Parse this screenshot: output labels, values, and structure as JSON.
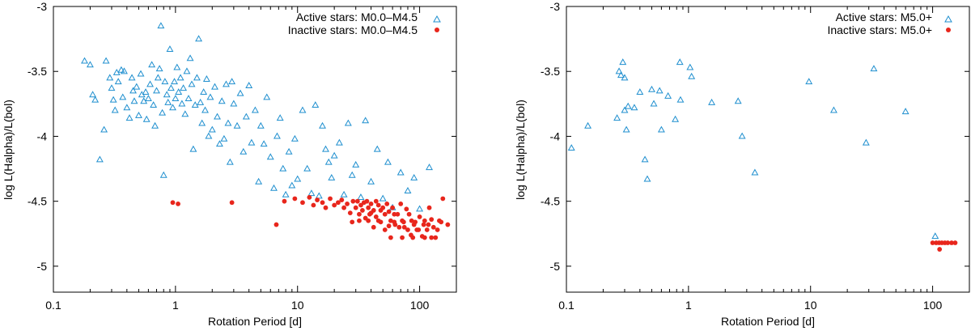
{
  "chart_data": [
    {
      "type": "scatter",
      "xscale": "log",
      "xlabel": "Rotation Period  [d]",
      "ylabel": "log L(Halpha)/L(bol)",
      "xlim": [
        0.1,
        200
      ],
      "ylim": [
        -5.2,
        -3
      ],
      "xticks": [
        0.1,
        1,
        10,
        100
      ],
      "xtick_labels": [
        "0.1",
        "1",
        "10",
        "100"
      ],
      "yticks": [
        -3,
        -3.5,
        -4,
        -4.5,
        -5
      ],
      "ytick_labels": [
        "-3",
        "-3.5",
        "-4",
        "-4.5",
        "-5"
      ],
      "legend_position": "top-right",
      "series": [
        {
          "name": "Active stars: M0.0–M4.5",
          "marker": "triangle",
          "color": "#1f8fcf",
          "points": [
            [
              0.18,
              -3.42
            ],
            [
              0.2,
              -3.45
            ],
            [
              0.21,
              -3.68
            ],
            [
              0.22,
              -3.72
            ],
            [
              0.24,
              -4.18
            ],
            [
              0.26,
              -3.95
            ],
            [
              0.27,
              -3.42
            ],
            [
              0.29,
              -3.55
            ],
            [
              0.3,
              -3.63
            ],
            [
              0.31,
              -3.72
            ],
            [
              0.32,
              -3.8
            ],
            [
              0.33,
              -3.51
            ],
            [
              0.34,
              -3.58
            ],
            [
              0.36,
              -3.49
            ],
            [
              0.37,
              -3.7
            ],
            [
              0.38,
              -3.5
            ],
            [
              0.4,
              -3.78
            ],
            [
              0.42,
              -3.86
            ],
            [
              0.44,
              -3.55
            ],
            [
              0.45,
              -3.65
            ],
            [
              0.46,
              -3.73
            ],
            [
              0.48,
              -3.62
            ],
            [
              0.5,
              -3.84
            ],
            [
              0.52,
              -3.52
            ],
            [
              0.53,
              -3.68
            ],
            [
              0.55,
              -3.73
            ],
            [
              0.57,
              -3.66
            ],
            [
              0.58,
              -3.87
            ],
            [
              0.6,
              -3.71
            ],
            [
              0.62,
              -3.6
            ],
            [
              0.64,
              -3.45
            ],
            [
              0.66,
              -3.76
            ],
            [
              0.68,
              -3.92
            ],
            [
              0.7,
              -3.65
            ],
            [
              0.72,
              -3.55
            ],
            [
              0.74,
              -3.48
            ],
            [
              0.76,
              -3.15
            ],
            [
              0.78,
              -3.82
            ],
            [
              0.8,
              -4.3
            ],
            [
              0.82,
              -3.58
            ],
            [
              0.85,
              -3.68
            ],
            [
              0.87,
              -3.74
            ],
            [
              0.9,
              -3.33
            ],
            [
              0.92,
              -3.63
            ],
            [
              0.95,
              -3.78
            ],
            [
              0.98,
              -3.58
            ],
            [
              1.0,
              -3.71
            ],
            [
              1.03,
              -3.47
            ],
            [
              1.06,
              -3.66
            ],
            [
              1.1,
              -3.55
            ],
            [
              1.13,
              -3.75
            ],
            [
              1.16,
              -3.63
            ],
            [
              1.2,
              -3.83
            ],
            [
              1.24,
              -3.5
            ],
            [
              1.28,
              -3.71
            ],
            [
              1.32,
              -3.4
            ],
            [
              1.36,
              -3.6
            ],
            [
              1.4,
              -4.1
            ],
            [
              1.45,
              -3.76
            ],
            [
              1.5,
              -3.55
            ],
            [
              1.55,
              -3.25
            ],
            [
              1.6,
              -3.74
            ],
            [
              1.65,
              -3.9
            ],
            [
              1.7,
              -3.66
            ],
            [
              1.75,
              -3.8
            ],
            [
              1.8,
              -3.56
            ],
            [
              1.87,
              -4.0
            ],
            [
              1.93,
              -3.7
            ],
            [
              2.0,
              -3.95
            ],
            [
              2.1,
              -3.62
            ],
            [
              2.2,
              -3.85
            ],
            [
              2.3,
              -4.06
            ],
            [
              2.4,
              -3.73
            ],
            [
              2.5,
              -4.02
            ],
            [
              2.6,
              -3.6
            ],
            [
              2.7,
              -3.9
            ],
            [
              2.8,
              -4.2
            ],
            [
              2.9,
              -3.58
            ],
            [
              3.0,
              -3.75
            ],
            [
              3.2,
              -3.92
            ],
            [
              3.4,
              -3.67
            ],
            [
              3.6,
              -4.12
            ],
            [
              3.8,
              -3.85
            ],
            [
              4.0,
              -3.61
            ],
            [
              4.2,
              -4.05
            ],
            [
              4.5,
              -3.8
            ],
            [
              4.8,
              -4.35
            ],
            [
              5.0,
              -3.92
            ],
            [
              5.3,
              -4.06
            ],
            [
              5.6,
              -3.7
            ],
            [
              6.0,
              -4.16
            ],
            [
              6.4,
              -4.4
            ],
            [
              6.8,
              -4.0
            ],
            [
              7.2,
              -3.86
            ],
            [
              7.6,
              -4.25
            ],
            [
              8.0,
              -4.45
            ],
            [
              8.5,
              -4.12
            ],
            [
              9.0,
              -4.38
            ],
            [
              9.5,
              -4.02
            ],
            [
              10,
              -4.33
            ],
            [
              11,
              -3.8
            ],
            [
              12,
              -4.25
            ],
            [
              13,
              -4.44
            ],
            [
              14,
              -3.76
            ],
            [
              15,
              -4.46
            ],
            [
              16,
              -3.92
            ],
            [
              17,
              -4.1
            ],
            [
              18,
              -4.2
            ],
            [
              19,
              -4.32
            ],
            [
              20,
              -4.15
            ],
            [
              22,
              -4.05
            ],
            [
              24,
              -4.45
            ],
            [
              26,
              -3.9
            ],
            [
              28,
              -4.3
            ],
            [
              30,
              -4.22
            ],
            [
              33,
              -4.47
            ],
            [
              36,
              -3.88
            ],
            [
              40,
              -4.35
            ],
            [
              45,
              -4.1
            ],
            [
              50,
              -4.48
            ],
            [
              55,
              -4.2
            ],
            [
              60,
              -4.55
            ],
            [
              70,
              -4.28
            ],
            [
              80,
              -4.42
            ],
            [
              90,
              -4.32
            ],
            [
              100,
              -4.56
            ],
            [
              120,
              -4.24
            ]
          ]
        },
        {
          "name": "Inactive stars: M0.0–M4.5",
          "marker": "dot",
          "color": "#e8261c",
          "points": [
            [
              0.95,
              -4.51
            ],
            [
              1.05,
              -4.52
            ],
            [
              2.9,
              -4.51
            ],
            [
              6.7,
              -4.68
            ],
            [
              7.8,
              -4.5
            ],
            [
              9.5,
              -4.48
            ],
            [
              11,
              -4.51
            ],
            [
              12.5,
              -4.47
            ],
            [
              13.5,
              -4.53
            ],
            [
              14.5,
              -4.49
            ],
            [
              16,
              -4.51
            ],
            [
              17,
              -4.55
            ],
            [
              18.5,
              -4.48
            ],
            [
              20,
              -4.53
            ],
            [
              21.5,
              -4.51
            ],
            [
              23,
              -4.49
            ],
            [
              24,
              -4.55
            ],
            [
              25.5,
              -4.52
            ],
            [
              27,
              -4.59
            ],
            [
              28.5,
              -4.5
            ],
            [
              30,
              -4.55
            ],
            [
              31,
              -4.5
            ],
            [
              32,
              -4.6
            ],
            [
              33,
              -4.53
            ],
            [
              34,
              -4.57
            ],
            [
              35,
              -4.51
            ],
            [
              36,
              -4.63
            ],
            [
              37,
              -4.5
            ],
            [
              38,
              -4.55
            ],
            [
              39,
              -4.6
            ],
            [
              40,
              -4.52
            ],
            [
              42,
              -4.57
            ],
            [
              44,
              -4.5
            ],
            [
              46,
              -4.53
            ],
            [
              48,
              -4.66
            ],
            [
              50,
              -4.55
            ],
            [
              52,
              -4.6
            ],
            [
              54,
              -4.52
            ],
            [
              56,
              -4.58
            ],
            [
              58,
              -4.65
            ],
            [
              60,
              -4.55
            ],
            [
              63,
              -4.68
            ],
            [
              66,
              -4.6
            ],
            [
              70,
              -4.52
            ],
            [
              72,
              -4.65
            ],
            [
              75,
              -4.7
            ],
            [
              78,
              -4.56
            ],
            [
              82,
              -4.6
            ],
            [
              86,
              -4.65
            ],
            [
              90,
              -4.68
            ],
            [
              95,
              -4.72
            ],
            [
              100,
              -4.62
            ],
            [
              105,
              -4.77
            ],
            [
              110,
              -4.65
            ],
            [
              115,
              -4.72
            ],
            [
              120,
              -4.55
            ],
            [
              130,
              -4.7
            ],
            [
              135,
              -4.78
            ],
            [
              145,
              -4.65
            ],
            [
              155,
              -4.48
            ],
            [
              170,
              -4.68
            ],
            [
              28,
              -4.66
            ],
            [
              32,
              -4.65
            ],
            [
              38,
              -4.65
            ],
            [
              42,
              -4.7
            ],
            [
              46,
              -4.65
            ],
            [
              52,
              -4.72
            ],
            [
              56,
              -4.69
            ],
            [
              62,
              -4.66
            ],
            [
              68,
              -4.7
            ],
            [
              74,
              -4.66
            ],
            [
              80,
              -4.72
            ],
            [
              85,
              -4.76
            ],
            [
              92,
              -4.66
            ],
            [
              98,
              -4.72
            ],
            [
              108,
              -4.68
            ],
            [
              118,
              -4.68
            ],
            [
              125,
              -4.64
            ],
            [
              140,
              -4.72
            ],
            [
              150,
              -4.66
            ],
            [
              58,
              -4.78
            ],
            [
              72,
              -4.78
            ],
            [
              88,
              -4.78
            ],
            [
              110,
              -4.78
            ],
            [
              125,
              -4.78
            ],
            [
              40,
              -4.59
            ],
            [
              44,
              -4.62
            ],
            [
              48,
              -4.57
            ],
            [
              62,
              -4.6
            ]
          ]
        }
      ]
    },
    {
      "type": "scatter",
      "xscale": "log",
      "xlabel": "Rotation Period  [d]",
      "ylabel": "log L(Halpha)/L(bol)",
      "xlim": [
        0.1,
        200
      ],
      "ylim": [
        -5.2,
        -3
      ],
      "xticks": [
        0.1,
        1,
        10,
        100
      ],
      "xtick_labels": [
        "0.1",
        "1",
        "10",
        "100"
      ],
      "yticks": [
        -3,
        -3.5,
        -4,
        -4.5,
        -5
      ],
      "ytick_labels": [
        "-3",
        "-3.5",
        "-4",
        "-4.5",
        "-5"
      ],
      "legend_position": "top-right",
      "series": [
        {
          "name": "Active stars: M5.0+",
          "marker": "triangle",
          "color": "#1f8fcf",
          "points": [
            [
              0.11,
              -4.09
            ],
            [
              0.15,
              -3.92
            ],
            [
              0.26,
              -3.86
            ],
            [
              0.27,
              -3.5
            ],
            [
              0.28,
              -3.53
            ],
            [
              0.29,
              -3.43
            ],
            [
              0.3,
              -3.55
            ],
            [
              0.3,
              -3.8
            ],
            [
              0.31,
              -3.95
            ],
            [
              0.32,
              -3.77
            ],
            [
              0.36,
              -3.78
            ],
            [
              0.4,
              -3.66
            ],
            [
              0.44,
              -4.18
            ],
            [
              0.46,
              -4.33
            ],
            [
              0.5,
              -3.64
            ],
            [
              0.52,
              -3.75
            ],
            [
              0.58,
              -3.65
            ],
            [
              0.6,
              -3.95
            ],
            [
              0.68,
              -3.69
            ],
            [
              0.78,
              -3.87
            ],
            [
              0.85,
              -3.43
            ],
            [
              0.86,
              -3.72
            ],
            [
              1.03,
              -3.47
            ],
            [
              1.06,
              -3.54
            ],
            [
              1.55,
              -3.74
            ],
            [
              2.55,
              -3.73
            ],
            [
              2.75,
              -4.0
            ],
            [
              3.5,
              -4.28
            ],
            [
              9.7,
              -3.58
            ],
            [
              15.5,
              -3.8
            ],
            [
              28.5,
              -4.05
            ],
            [
              33,
              -3.48
            ],
            [
              60,
              -3.81
            ],
            [
              105,
              -4.77
            ]
          ]
        },
        {
          "name": "Inactive stars: M5.0+",
          "marker": "dot",
          "color": "#e8261c",
          "points": [
            [
              100,
              -4.82
            ],
            [
              107,
              -4.82
            ],
            [
              113,
              -4.82
            ],
            [
              119,
              -4.82
            ],
            [
              126,
              -4.82
            ],
            [
              133,
              -4.82
            ],
            [
              143,
              -4.82
            ],
            [
              153,
              -4.82
            ],
            [
              114,
              -4.87
            ]
          ]
        }
      ]
    }
  ]
}
